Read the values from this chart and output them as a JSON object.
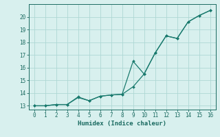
{
  "xlabel": "Humidex (Indice chaleur)",
  "line1_x": [
    0,
    1,
    2,
    3,
    4,
    5,
    6,
    7,
    8,
    9,
    10,
    11,
    12,
    13,
    14,
    15,
    16
  ],
  "line1_y": [
    13.0,
    13.0,
    13.1,
    13.1,
    13.7,
    13.4,
    13.75,
    13.85,
    13.9,
    16.5,
    15.5,
    17.15,
    18.5,
    18.3,
    19.6,
    20.1,
    20.5
  ],
  "line2_x": [
    0,
    1,
    2,
    3,
    4,
    5,
    6,
    7,
    8,
    9,
    10,
    11,
    12,
    13,
    14,
    15,
    16
  ],
  "line2_y": [
    13.0,
    13.0,
    13.1,
    13.1,
    13.65,
    13.4,
    13.75,
    13.85,
    13.9,
    14.5,
    15.5,
    17.15,
    18.5,
    18.3,
    19.6,
    20.1,
    20.5
  ],
  "line_color": "#1a7a6e",
  "marker_color": "#1a7a6e",
  "bg_color": "#d8f0ee",
  "grid_color": "#aed8d4",
  "tick_color": "#1a6a60",
  "label_color": "#1a6a60",
  "xlim": [
    -0.5,
    16.5
  ],
  "ylim": [
    12.7,
    21.0
  ],
  "yticks": [
    13,
    14,
    15,
    16,
    17,
    18,
    19,
    20
  ],
  "xticks": [
    0,
    1,
    2,
    3,
    4,
    5,
    6,
    7,
    8,
    9,
    10,
    11,
    12,
    13,
    14,
    15,
    16
  ]
}
